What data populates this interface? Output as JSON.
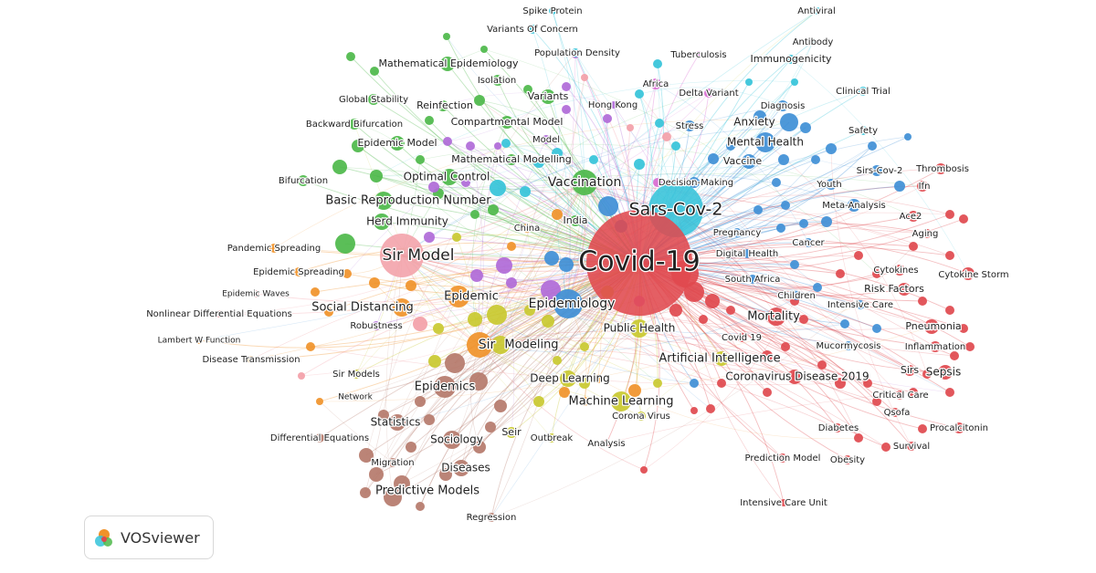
{
  "palette": {
    "red": "#e0494e",
    "cyan": "#35c3d9",
    "blue": "#3f8fd6",
    "green": "#4db84a",
    "brown": "#b5796b",
    "orange": "#f0922a",
    "yellow": "#c9c930",
    "purple": "#b06ad8",
    "pink": "#f3a0a8",
    "magenta": "#d96ad1"
  },
  "brand": {
    "name": "VOSviewer"
  },
  "terms": [
    "Covid-19",
    "Sars-Cov-2",
    "Sir Model",
    "Vaccination",
    "Epidemiology",
    "Epidemic",
    "Sir",
    "Modeling",
    "Basic Reproduction Number",
    "Herd Immunity",
    "Optimal Control",
    "Social Distancing",
    "Mental Health",
    "Anxiety",
    "Vaccine",
    "Mortality",
    "Public Health",
    "Artificial Intelligence",
    "Machine Learning",
    "Deep Learning",
    "Coronavirus Disease 2019",
    "Epidemics",
    "Predictive Models",
    "Diseases",
    "Sociology",
    "Statistics",
    "Seir",
    "Outbreak",
    "Pneumonia",
    "Sepsis",
    "Sirs",
    "Risk Factors",
    "Cytokines",
    "Cytokine Storm",
    "Meta-Analysis",
    "Youth",
    "Sirs-Cov-2",
    "Thrombosis",
    "Ifn",
    "Ace2",
    "Aging",
    "Spike Protein",
    "Variants Of Concern",
    "Population Density",
    "Tuberculosis",
    "Antiviral",
    "Antibody",
    "Immunogenicity",
    "Clinical Trial",
    "Safety",
    "Diagnosis",
    "Stress",
    "Delta Variant",
    "Africa",
    "Hong Kong",
    "Variants",
    "Isolation",
    "Mathematical Epidemiology",
    "Global Stability",
    "Reinfection",
    "Backward Bifurcation",
    "Compartmental Model",
    "Model",
    "Epidemic Model",
    "Mathematical Modelling",
    "Bifurcation",
    "Decision-Making",
    "India",
    "China",
    "Pregnancy",
    "Digital Health",
    "Cancer",
    "South Africa",
    "Children",
    "Intensive Care",
    "Covid 19",
    "Mucormycosis",
    "Inflammation",
    "Critical Care",
    "Qsofa",
    "Procalcitonin",
    "Diabetes",
    "Survival",
    "Obesity",
    "Prediction Model",
    "Intensive Care Unit",
    "Pandemic Spreading",
    "Epidemic Spreading",
    "Epidemic Waves",
    "Nonlinear Differential Equations",
    "Lambert W Function",
    "Disease Transmission",
    "Robustness",
    "Sir Models",
    "Network",
    "Differential Equations",
    "Migration",
    "Regression",
    "Corona Virus",
    "Analysis"
  ]
}
